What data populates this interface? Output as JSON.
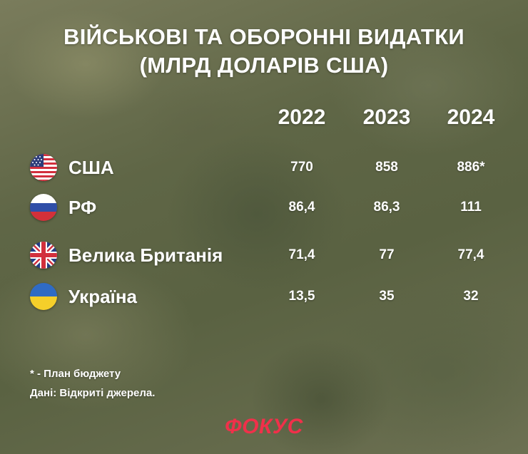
{
  "title": {
    "line1": "ВІЙСЬКОВІ ТА ОБОРОННІ ВИДАТКИ",
    "line2": "(МЛРД ДОЛАРІВ США)"
  },
  "chart_data": {
    "type": "table",
    "title": "ВІЙСЬКОВІ ТА ОБОРОННІ ВИДАТКИ (МЛРД ДОЛАРІВ США)",
    "columns": [
      "2022",
      "2023",
      "2024"
    ],
    "rows": [
      {
        "country": "США",
        "flag_icon": "us-flag-icon",
        "values": [
          "770",
          "858",
          "886*"
        ]
      },
      {
        "country": "РФ",
        "flag_icon": "russia-flag-icon",
        "values": [
          "86,4",
          "86,3",
          "111"
        ]
      },
      {
        "country": "Велика Британія",
        "flag_icon": "uk-flag-icon",
        "values": [
          "71,4",
          "77",
          "77,4"
        ]
      },
      {
        "country": "Україна",
        "flag_icon": "ukraine-flag-icon",
        "values": [
          "13,5",
          "35",
          "32"
        ]
      }
    ]
  },
  "notes": {
    "footnote": "* - План бюджету",
    "source": "Дані: Відкриті джерела."
  },
  "logo": {
    "text": "ФОКУС",
    "color": "#f0304a"
  },
  "colors": {
    "text": "#ffffff",
    "background": "#626849"
  }
}
